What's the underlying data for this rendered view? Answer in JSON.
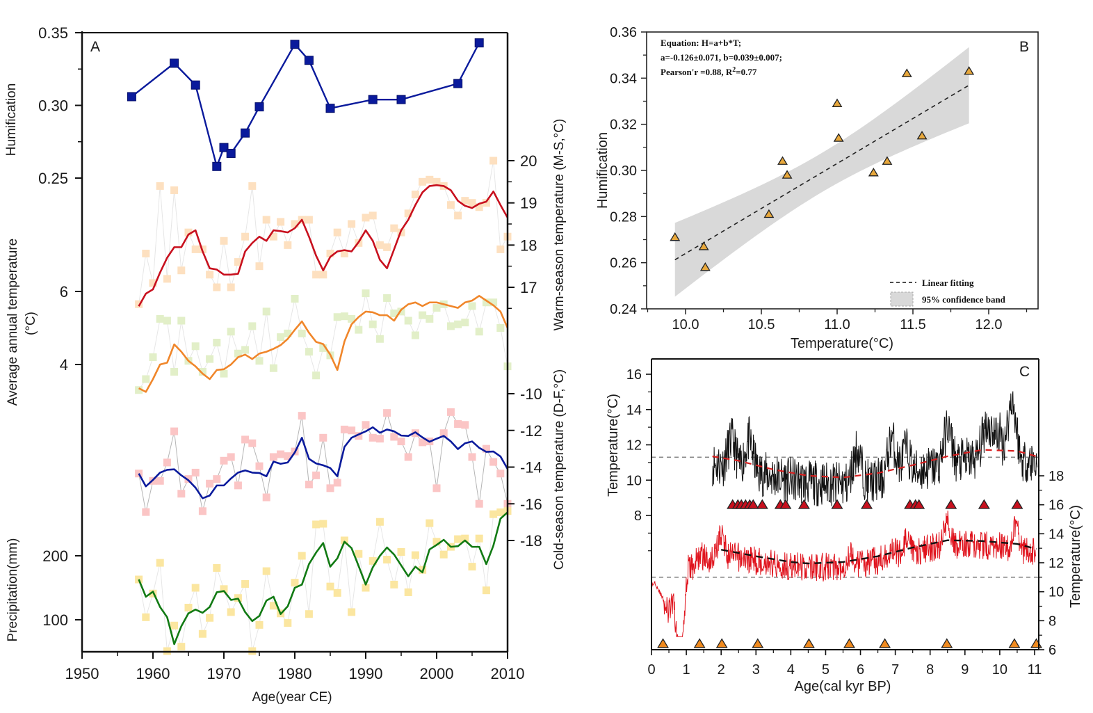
{
  "chart_data": [
    {
      "panel": "A",
      "type": "line",
      "panel_label": "A",
      "xlabel": "Age(year CE)",
      "xlim": [
        1950,
        2010
      ],
      "xticks": [
        1950,
        1960,
        1970,
        1980,
        1990,
        2000,
        2010
      ],
      "grid": false,
      "series": [
        {
          "name": "Humification",
          "axis": "left-top",
          "ylabel": "Humification",
          "ylim": [
            0.25,
            0.35
          ],
          "yticks": [
            "0.25",
            "0.30",
            "0.35"
          ],
          "color": "#0a1a9c",
          "marker": "square",
          "x": [
            1957,
            1963,
            1966,
            1969,
            1970,
            1971,
            1973,
            1975,
            1980,
            1982,
            1985,
            1991,
            1995,
            2003,
            2006
          ],
          "y": [
            0.306,
            0.329,
            0.314,
            0.258,
            0.271,
            0.267,
            0.281,
            0.299,
            0.342,
            0.331,
            0.298,
            0.304,
            0.304,
            0.315,
            0.343
          ]
        },
        {
          "name": "Warm-season temperature (M-S)",
          "axis": "right-1",
          "ylabel": "Warm-season temperature (M-S,°C)",
          "ylim": [
            16.5,
            20.5
          ],
          "yticks": [
            "17",
            "18",
            "19",
            "20"
          ],
          "color": "#c8101e",
          "point_color": "#fde0c0",
          "x": [
            1958,
            1959,
            1960,
            1961,
            1962,
            1963,
            1964,
            1965,
            1966,
            1967,
            1968,
            1969,
            1970,
            1971,
            1972,
            1973,
            1974,
            1975,
            1976,
            1977,
            1978,
            1979,
            1980,
            1981,
            1982,
            1983,
            1984,
            1985,
            1986,
            1987,
            1988,
            1989,
            1990,
            1991,
            1992,
            1993,
            1994,
            1995,
            1996,
            1997,
            1998,
            1999,
            2000,
            2001,
            2002,
            2003,
            2004,
            2005,
            2006,
            2007,
            2008,
            2009,
            2010
          ],
          "smooth": [
            16.55,
            16.85,
            16.95,
            17.35,
            17.7,
            17.95,
            17.95,
            18.25,
            18.35,
            17.85,
            17.45,
            17.42,
            17.3,
            17.3,
            17.32,
            17.85,
            18.05,
            18.2,
            18.1,
            18.35,
            18.33,
            18.3,
            18.4,
            18.6,
            18.2,
            17.75,
            17.4,
            17.72,
            17.85,
            17.88,
            17.85,
            18.07,
            18.35,
            18.1,
            17.65,
            17.45,
            17.9,
            18.35,
            18.6,
            18.95,
            19.25,
            19.4,
            19.42,
            19.4,
            19.3,
            19.05,
            18.93,
            18.88,
            18.98,
            19.03,
            19.27,
            18.95,
            18.65
          ],
          "points": [
            16.6,
            17.8,
            17.1,
            19.4,
            17.2,
            19.3,
            17.4,
            18.3,
            17.9,
            17.9,
            17.3,
            17.0,
            18.1,
            17.0,
            17.6,
            18.2,
            19.4,
            17.5,
            18.6,
            18.2,
            18.55,
            18.0,
            18.5,
            18.6,
            18.6,
            17.3,
            17.3,
            17.8,
            18.3,
            17.8,
            18.5,
            18.05,
            18.65,
            18.7,
            18.0,
            17.95,
            18.4,
            18.3,
            18.75,
            19.2,
            19.5,
            19.55,
            19.5,
            19.4,
            18.95,
            18.7,
            19.05,
            19.0,
            18.9,
            19.0,
            20.0,
            17.9,
            18.2
          ]
        },
        {
          "name": "Average annual temperature",
          "axis": "left",
          "ylabel": "Average annual temperature (°C)",
          "ylim": [
            3.0,
            7.5
          ],
          "yticks": [
            "4",
            "6"
          ],
          "color": "#f0862a",
          "point_color": "#e2efc8",
          "x": [
            1958,
            1959,
            1960,
            1961,
            1962,
            1963,
            1964,
            1965,
            1966,
            1967,
            1968,
            1969,
            1970,
            1971,
            1972,
            1973,
            1974,
            1975,
            1976,
            1977,
            1978,
            1979,
            1980,
            1981,
            1982,
            1983,
            1984,
            1985,
            1986,
            1987,
            1988,
            1989,
            1990,
            1991,
            1992,
            1993,
            1994,
            1995,
            1996,
            1997,
            1998,
            1999,
            2000,
            2001,
            2002,
            2003,
            2004,
            2005,
            2006,
            2007,
            2008,
            2009,
            2010
          ],
          "smooth": [
            3.35,
            3.25,
            3.6,
            4.0,
            4.05,
            4.55,
            4.35,
            4.1,
            3.95,
            3.75,
            3.6,
            3.85,
            3.87,
            4.0,
            4.2,
            4.27,
            4.15,
            4.3,
            4.35,
            4.43,
            4.53,
            4.7,
            4.95,
            5.18,
            4.87,
            4.62,
            4.56,
            4.27,
            3.85,
            4.63,
            5.1,
            5.3,
            5.45,
            5.43,
            5.35,
            5.35,
            5.2,
            5.5,
            5.65,
            5.7,
            5.6,
            5.7,
            5.7,
            5.65,
            5.6,
            5.55,
            5.7,
            5.75,
            5.88,
            5.75,
            5.62,
            5.45,
            5.0
          ],
          "points": [
            3.3,
            3.6,
            4.2,
            5.25,
            5.2,
            3.8,
            5.2,
            4.1,
            4.5,
            3.8,
            4.15,
            4.6,
            3.75,
            4.9,
            4.3,
            4.4,
            5.05,
            4.1,
            5.45,
            3.9,
            4.75,
            4.85,
            5.8,
            4.85,
            4.35,
            3.7,
            4.45,
            4.25,
            5.3,
            5.32,
            5.25,
            4.95,
            5.95,
            5.1,
            4.7,
            5.82,
            5.4,
            5.45,
            5.2,
            4.8,
            5.35,
            5.25,
            5.55,
            5.65,
            5.05,
            5.1,
            5.15,
            5.6,
            4.9,
            5.7,
            5.7,
            5.0,
            3.95
          ]
        },
        {
          "name": "Cold-season temperature (D-F)",
          "axis": "right-2",
          "ylabel": "Cold-season temperature (D-F,°C)",
          "ylim": [
            -20,
            -8
          ],
          "yticks": [
            "-18",
            "-16",
            "-14",
            "-12",
            "-10"
          ],
          "color": "#0a1a9c",
          "point_color": "#fbc5c5",
          "x": [
            1958,
            1959,
            1960,
            1961,
            1962,
            1963,
            1964,
            1965,
            1966,
            1967,
            1968,
            1969,
            1970,
            1971,
            1972,
            1973,
            1974,
            1975,
            1976,
            1977,
            1978,
            1979,
            1980,
            1981,
            1982,
            1983,
            1984,
            1985,
            1986,
            1987,
            1988,
            1989,
            1990,
            1991,
            1992,
            1993,
            1994,
            1995,
            1996,
            1997,
            1998,
            1999,
            2000,
            2001,
            2002,
            2003,
            2004,
            2005,
            2006,
            2007,
            2008,
            2009,
            2010
          ],
          "smooth": [
            -14.35,
            -15.05,
            -14.7,
            -14.3,
            -14.15,
            -14.12,
            -14.45,
            -14.72,
            -15.12,
            -15.7,
            -15.55,
            -15.0,
            -15.0,
            -14.62,
            -14.3,
            -14.18,
            -14.3,
            -14.32,
            -14.5,
            -13.7,
            -13.82,
            -13.75,
            -13.2,
            -12.4,
            -13.55,
            -13.8,
            -13.9,
            -14.05,
            -14.5,
            -12.9,
            -12.4,
            -12.22,
            -12.05,
            -11.83,
            -12.13,
            -11.95,
            -12.05,
            -12.28,
            -12.3,
            -12.1,
            -12.38,
            -12.62,
            -12.45,
            -12.3,
            -12.6,
            -13.02,
            -12.7,
            -12.6,
            -12.95,
            -13.17,
            -13.15,
            -13.42,
            -14.1
          ],
          "points": [
            -14.35,
            -16.45,
            -14.75,
            -14.75,
            -13.75,
            -12.05,
            -15.45,
            -14.65,
            -14.3,
            -16.4,
            -14.9,
            -14.65,
            -13.65,
            -13.45,
            -15.0,
            -12.5,
            -12.7,
            -13.95,
            -15.65,
            -13.45,
            -13.3,
            -13.4,
            -13.15,
            -11.2,
            -14.95,
            -14.45,
            -12.4,
            -15.15,
            -14.85,
            -11.95,
            -12.0,
            -12.3,
            -11.7,
            -12.4,
            -12.45,
            -11.05,
            -12.35,
            -12.6,
            -13.45,
            -12.15,
            -12.65,
            -12.6,
            -15.15,
            -12.15,
            -11.0,
            -11.65,
            -11.7,
            -13.45,
            -16.0,
            -13.0,
            -13.72,
            -14.35,
            -16.0
          ]
        },
        {
          "name": "Precipitation",
          "axis": "left-bottom",
          "ylabel": "Precipitation(mm)",
          "ylim": [
            50,
            260
          ],
          "yticks": [
            "100",
            "200"
          ],
          "color": "#117a13",
          "point_color": "#fbe6a0",
          "x": [
            1958,
            1959,
            1960,
            1961,
            1962,
            1963,
            1964,
            1965,
            1966,
            1967,
            1968,
            1969,
            1970,
            1971,
            1972,
            1973,
            1974,
            1975,
            1976,
            1977,
            1978,
            1979,
            1980,
            1981,
            1982,
            1983,
            1984,
            1985,
            1986,
            1987,
            1988,
            1989,
            1990,
            1991,
            1992,
            1993,
            1994,
            1995,
            1996,
            1997,
            1998,
            1999,
            2000,
            2001,
            2002,
            2003,
            2004,
            2005,
            2006,
            2007,
            2008,
            2009,
            2010
          ],
          "smooth": [
            163,
            136,
            144,
            120,
            104,
            62,
            90,
            110,
            116,
            111,
            120,
            143,
            145,
            131,
            133,
            112,
            98,
            106,
            130,
            136,
            109,
            121,
            150,
            155,
            187,
            205,
            220,
            183,
            196,
            222,
            212,
            184,
            155,
            182,
            200,
            213,
            202,
            185,
            168,
            183,
            174,
            210,
            217,
            225,
            214,
            215,
            224,
            214,
            214,
            187,
            216,
            258,
            268
          ],
          "points": [
            163,
            104,
            141,
            189,
            44,
            91,
            58,
            119,
            150,
            78,
            103,
            181,
            148,
            112,
            134,
            156,
            48,
            92,
            176,
            122,
            110,
            95,
            158,
            200,
            109,
            249,
            250,
            152,
            142,
            224,
            112,
            203,
            150,
            192,
            253,
            194,
            155,
            206,
            143,
            201,
            178,
            251,
            222,
            202,
            214,
            226,
            227,
            183,
            227,
            146,
            265,
            268,
            270
          ]
        }
      ]
    },
    {
      "panel": "B",
      "type": "scatter",
      "panel_label": "B",
      "xlabel": "Temperature(°C)",
      "ylabel": "Humification",
      "xlim": [
        9.75,
        12.25
      ],
      "ylim": [
        0.24,
        0.36
      ],
      "xticks": [
        "10.0",
        "10.5",
        "11.0",
        "11.5",
        "12.0"
      ],
      "yticks": [
        "0.24",
        "0.26",
        "0.28",
        "0.30",
        "0.32",
        "0.34",
        "0.36"
      ],
      "grid": false,
      "points": {
        "x": [
          9.93,
          10.12,
          10.13,
          10.55,
          10.64,
          10.67,
          11.0,
          11.01,
          11.24,
          11.33,
          11.46,
          11.56,
          11.87
        ],
        "y": [
          0.271,
          0.267,
          0.258,
          0.281,
          0.304,
          0.298,
          0.329,
          0.314,
          0.299,
          0.304,
          0.342,
          0.315,
          0.343
        ],
        "color": "#e8a83c",
        "marker": "triangle"
      },
      "fit": {
        "intercept": -0.126,
        "slope": 0.039,
        "x_range": [
          9.93,
          11.87
        ],
        "band_lower_at_ends": [
          0.248,
          0.324
        ],
        "band_upper_at_ends": [
          0.28,
          0.357
        ],
        "band_center_x": 10.9
      },
      "annotation": [
        "Equation: H=a+b*T;",
        "a=-0.126±0.071, b=0.039±0.007;",
        "Pearson'r =0.88, R",
        "2",
        "=0.77"
      ],
      "legend": {
        "position": "bottom-right",
        "items": [
          "Linear fitting",
          "95% confidence band"
        ]
      }
    },
    {
      "panel": "C",
      "type": "line",
      "panel_label": "C",
      "xlabel": "Age(cal kyr BP)",
      "xlim": [
        0,
        11.1
      ],
      "xticks": [
        "0",
        "1",
        "2",
        "3",
        "4",
        "5",
        "6",
        "7",
        "8",
        "9",
        "10",
        "11"
      ],
      "grid": false,
      "left_axis": {
        "ylabel": "Temperature(°C)",
        "ylim": [
          8,
          17
        ],
        "yticks": [
          "8",
          "10",
          "12",
          "14",
          "16"
        ],
        "reference_line": 11.3,
        "series_color": "#111111",
        "trend_color": "#d81e1e",
        "trend": {
          "x": [
            1.75,
            2.5,
            3.5,
            4.5,
            5.5,
            6.5,
            7.5,
            8.5,
            9.5,
            10.5,
            11.05
          ],
          "y": [
            11.35,
            11.1,
            10.6,
            10.25,
            10.15,
            10.4,
            10.85,
            11.35,
            11.72,
            11.65,
            11.35
          ]
        },
        "x_range": [
          1.75,
          11.1
        ],
        "markers_x": [
          2.33,
          2.48,
          2.58,
          2.7,
          2.82,
          2.92,
          3.18,
          3.7,
          3.85,
          4.38,
          5.33,
          6.18,
          7.42,
          7.58,
          7.68,
          8.6,
          9.55,
          10.5
        ],
        "marker_y": 8.6,
        "marker_color": "#c8101e"
      },
      "right_axis": {
        "ylabel": "Temperature(°C)",
        "ylim": [
          6,
          19
        ],
        "yticks": [
          "6",
          "8",
          "10",
          "12",
          "14",
          "16",
          "18"
        ],
        "reference_line": 11.0,
        "series_color": "#e0141e",
        "trend_color": "#111111",
        "trend": {
          "x": [
            2.0,
            3.0,
            4.0,
            4.5,
            5.5,
            6.5,
            7.5,
            8.5,
            9.5,
            10.5,
            11.05
          ],
          "y": [
            12.9,
            12.45,
            12.05,
            11.95,
            12.05,
            12.45,
            13.05,
            13.55,
            13.5,
            13.3,
            12.95
          ]
        },
        "x_range": [
          0,
          11.05
        ],
        "markers_x": [
          0.33,
          1.38,
          2.02,
          3.05,
          4.52,
          5.68,
          6.7,
          8.48,
          10.42,
          11.05
        ],
        "marker_y": 6.4,
        "marker_color": "#f08a1e"
      }
    }
  ]
}
